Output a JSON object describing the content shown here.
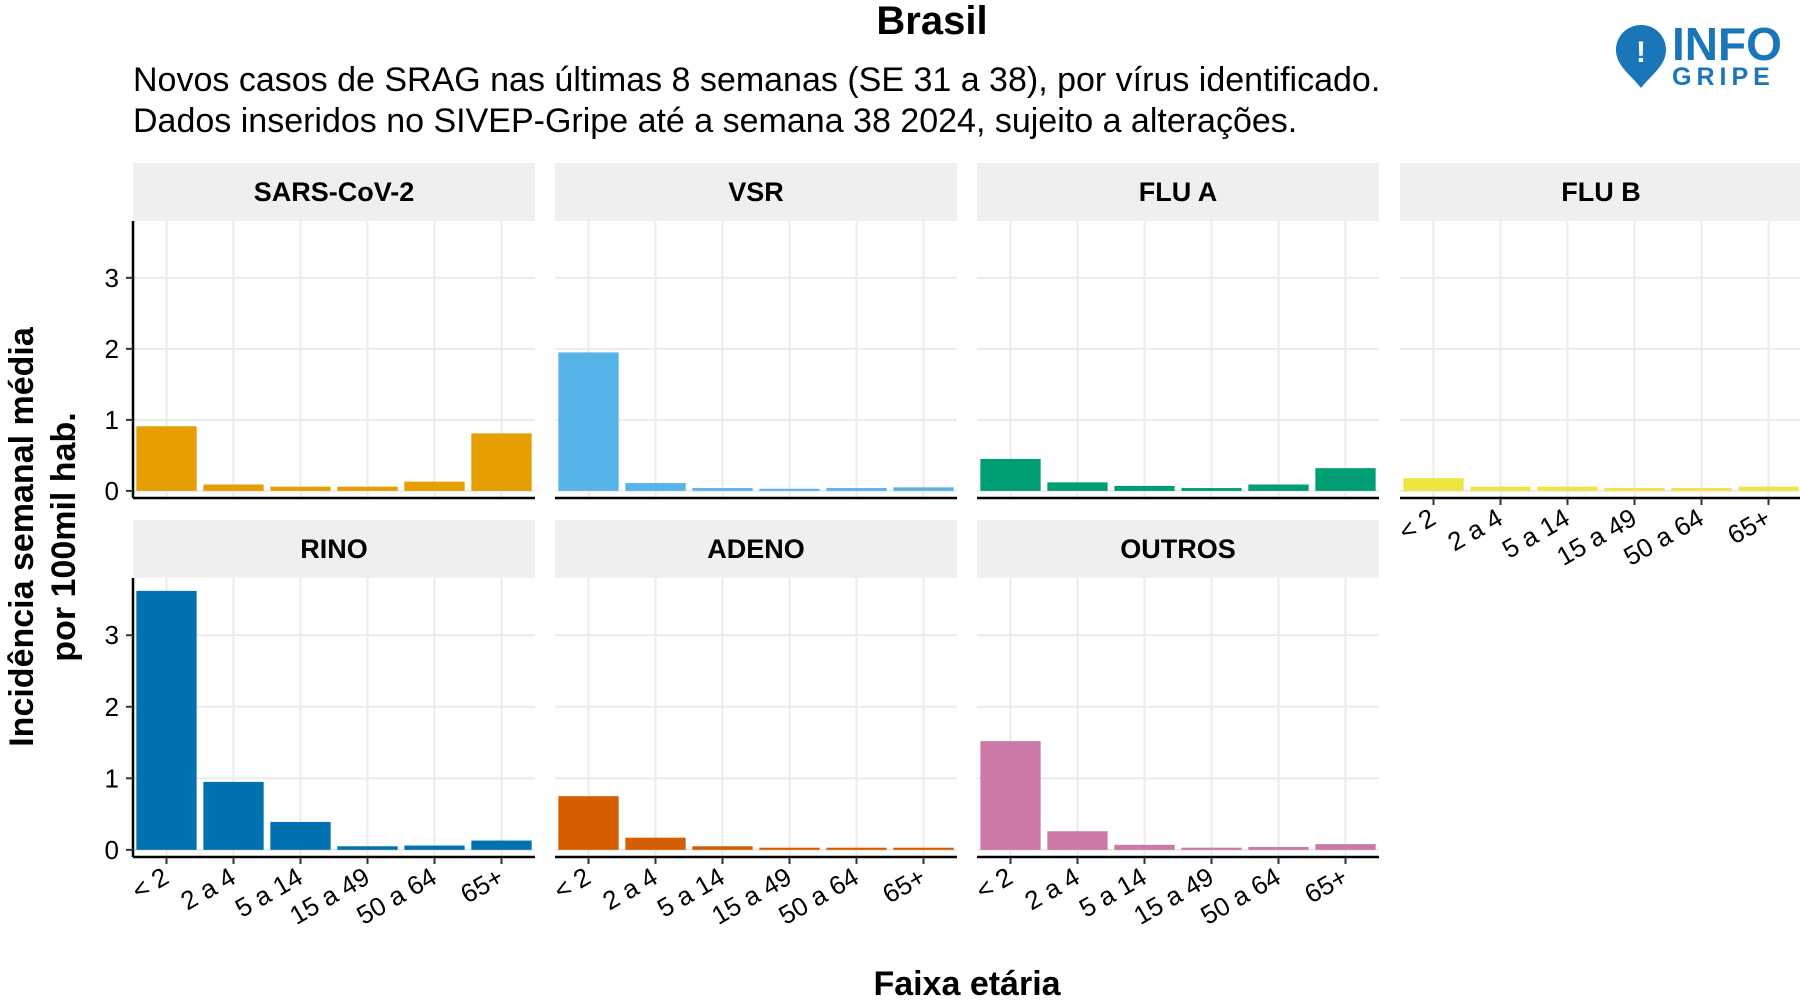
{
  "chart_data": {
    "type": "bar",
    "title": "Brasil",
    "subtitle_lines": [
      "Novos casos de SRAG nas últimas 8 semanas (SE 31 a 38), por vírus identificado.",
      "Dados inseridos no SIVEP-Gripe até a semana 38 2024, sujeito a alterações."
    ],
    "xlabel": "Faixa etária",
    "ylabel_lines": [
      "Incidência  semanal média",
      "por 100mil hab."
    ],
    "categories": [
      "< 2",
      "2 a 4",
      "5 a 14",
      "15 a 49",
      "50 a 64",
      "65+"
    ],
    "yticks": [
      0,
      1,
      2,
      3
    ],
    "ylim": [
      -0.1,
      3.8
    ],
    "grid": true,
    "legend": "none",
    "panels": [
      {
        "name": "SARS-CoV-2",
        "color": "#E69F00",
        "values": [
          0.91,
          0.09,
          0.06,
          0.06,
          0.13,
          0.81
        ]
      },
      {
        "name": "VSR",
        "color": "#56B4E9",
        "values": [
          1.95,
          0.11,
          0.04,
          0.03,
          0.04,
          0.05
        ]
      },
      {
        "name": "FLU A",
        "color": "#009E73",
        "values": [
          0.45,
          0.12,
          0.07,
          0.04,
          0.09,
          0.32
        ]
      },
      {
        "name": "FLU B",
        "color": "#F0E442",
        "values": [
          0.18,
          0.06,
          0.06,
          0.04,
          0.04,
          0.06
        ]
      },
      {
        "name": "RINO",
        "color": "#0072B2",
        "values": [
          3.62,
          0.95,
          0.39,
          0.05,
          0.06,
          0.13
        ]
      },
      {
        "name": "ADENO",
        "color": "#D55E00",
        "values": [
          0.75,
          0.17,
          0.05,
          0.03,
          0.03,
          0.03
        ]
      },
      {
        "name": "OUTROS",
        "color": "#CC79A7",
        "values": [
          1.52,
          0.26,
          0.07,
          0.03,
          0.04,
          0.08
        ]
      }
    ]
  },
  "logo": {
    "text_top": "INFO",
    "text_bottom": "GRIPE",
    "pin_symbol": "!",
    "icon": "map-pin-icon",
    "color": "#1a76b8"
  }
}
